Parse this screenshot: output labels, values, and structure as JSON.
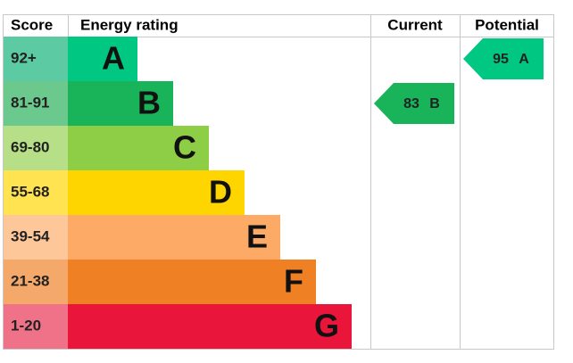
{
  "chart_data": {
    "type": "epc",
    "headers": [
      "Score",
      "Energy rating",
      "Current",
      "Potential"
    ],
    "bands": [
      {
        "score": "92+",
        "letter": "A",
        "color": "#00c781",
        "score_color": "#5ccaa3"
      },
      {
        "score": "81-91",
        "letter": "B",
        "color": "#19b459",
        "score_color": "#6cc98d"
      },
      {
        "score": "69-80",
        "letter": "C",
        "color": "#8dce46",
        "score_color": "#b6df87"
      },
      {
        "score": "55-68",
        "letter": "D",
        "color": "#ffd500",
        "score_color": "#ffe350"
      },
      {
        "score": "39-54",
        "letter": "E",
        "color": "#fcaa65",
        "score_color": "#fdc79a"
      },
      {
        "score": "21-38",
        "letter": "F",
        "color": "#ef8023",
        "score_color": "#f4a86a"
      },
      {
        "score": "1-20",
        "letter": "G",
        "color": "#e9153b",
        "score_color": "#f07288"
      }
    ],
    "current": {
      "value": 83,
      "band": "B"
    },
    "potential": {
      "value": 95,
      "band": "A"
    }
  }
}
